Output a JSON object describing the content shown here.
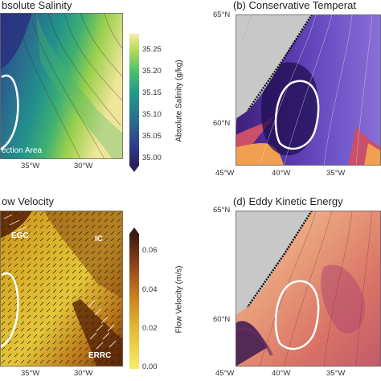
{
  "panels": {
    "a": {
      "title": "bsolute Salinity",
      "label_text": "ection Area",
      "lon_ticks": [
        "35°W",
        "30°W"
      ]
    },
    "b": {
      "title": "(b) Conservative Temperat",
      "lat_ticks": [
        "65°N",
        "60°N"
      ],
      "lon_ticks": [
        "45°W",
        "40°W",
        "35°W"
      ]
    },
    "c": {
      "title": "ow Velocity",
      "labels": [
        "EGC",
        "IC",
        "ERRC"
      ],
      "lon_ticks": [
        "35°W",
        "30°W"
      ]
    },
    "d": {
      "title": "(d) Eddy Kinetic Energy",
      "lat_ticks": [
        "65°N",
        "60°N"
      ],
      "lon_ticks": [
        "45°W",
        "40°W",
        "35°W"
      ]
    }
  },
  "colorbars": {
    "salinity": {
      "label": "Absolute Salinity (g/kg)",
      "ticks": [
        "35.25",
        "35.20",
        "35.15",
        "35.10",
        "35.05",
        "35.00"
      ],
      "range": [
        35.0,
        35.28
      ],
      "colormap": "viridis-like"
    },
    "velocity": {
      "label": "Flow Velocity (m/s)",
      "ticks": [
        "0.06",
        "0.04",
        "0.02",
        "0.00"
      ],
      "range": [
        0.0,
        0.068
      ],
      "colormap": "brown-yellow"
    }
  },
  "colors": {
    "land": "#c8c8c8",
    "convection_outline": "#ffffff"
  }
}
